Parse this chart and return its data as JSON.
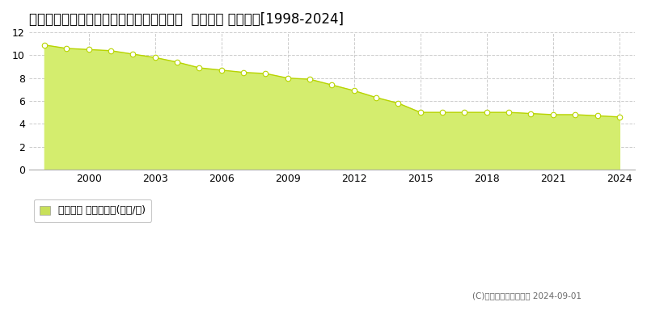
{
  "title": "山口県防府市大字向島字藪原１５０番７外  地価公示 地価推移[1998-2024]",
  "years": [
    1998,
    1999,
    2000,
    2001,
    2002,
    2003,
    2004,
    2005,
    2006,
    2007,
    2008,
    2009,
    2010,
    2011,
    2012,
    2013,
    2014,
    2015,
    2016,
    2017,
    2018,
    2019,
    2020,
    2021,
    2022,
    2023,
    2024
  ],
  "values": [
    10.9,
    10.6,
    10.5,
    10.4,
    10.1,
    9.8,
    9.4,
    8.9,
    8.7,
    8.5,
    8.4,
    8.0,
    7.9,
    7.4,
    6.9,
    6.3,
    5.8,
    5.0,
    5.0,
    5.0,
    5.0,
    5.0,
    4.9,
    4.8,
    4.8,
    4.7,
    4.6
  ],
  "ylim": [
    0,
    12
  ],
  "yticks": [
    0,
    2,
    4,
    6,
    8,
    10,
    12
  ],
  "xticks": [
    2000,
    2003,
    2006,
    2009,
    2012,
    2015,
    2018,
    2021,
    2024
  ],
  "fill_color": "#d4ed6e",
  "line_color": "#b8d400",
  "marker_facecolor": "#ffffff",
  "marker_edgecolor": "#b8d400",
  "bg_color": "#ffffff",
  "plot_bg_color": "#ffffff",
  "grid_color": "#cccccc",
  "title_fontsize": 12,
  "tick_fontsize": 9,
  "legend_label": "地価公示 平均坪単価(万円/坪)",
  "legend_square_color": "#c8e05a",
  "copyright_text": "(C)土地価格ドットコム 2024-09-01",
  "xlim_left": 1997.3,
  "xlim_right": 2024.7
}
